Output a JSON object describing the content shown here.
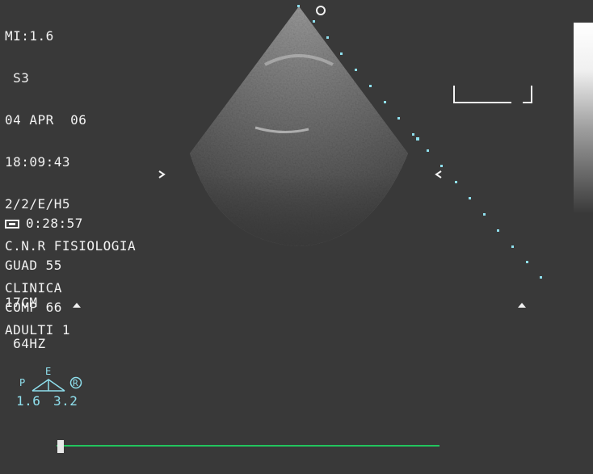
{
  "header": {
    "lines": [
      "MI:1.6",
      " S3",
      "04 APR  06",
      "18:09:43",
      "2/2/E/H5",
      "C.N.R FISIOLOGIA",
      "CLINICA",
      "ADULTI 1"
    ]
  },
  "cine": {
    "time": "0:28:57",
    "gain": "GUAD 55",
    "compression": "COMP 66"
  },
  "imaging": {
    "depth": "17CM",
    "frame_rate": " 64HZ"
  },
  "probe": {
    "p_label": "P",
    "e_label": "E",
    "r_label": "R",
    "left_value": "1.6",
    "right_value": "3.2"
  },
  "colors": {
    "background": "#393939",
    "text": "#f2f2f2",
    "cyan": "#8fe0ee",
    "timeline": "#22c55e"
  },
  "icons": [
    "cine-tape-icon",
    "focus-marker-icon",
    "depth-marker-icon",
    "probe-orientation-icon"
  ]
}
